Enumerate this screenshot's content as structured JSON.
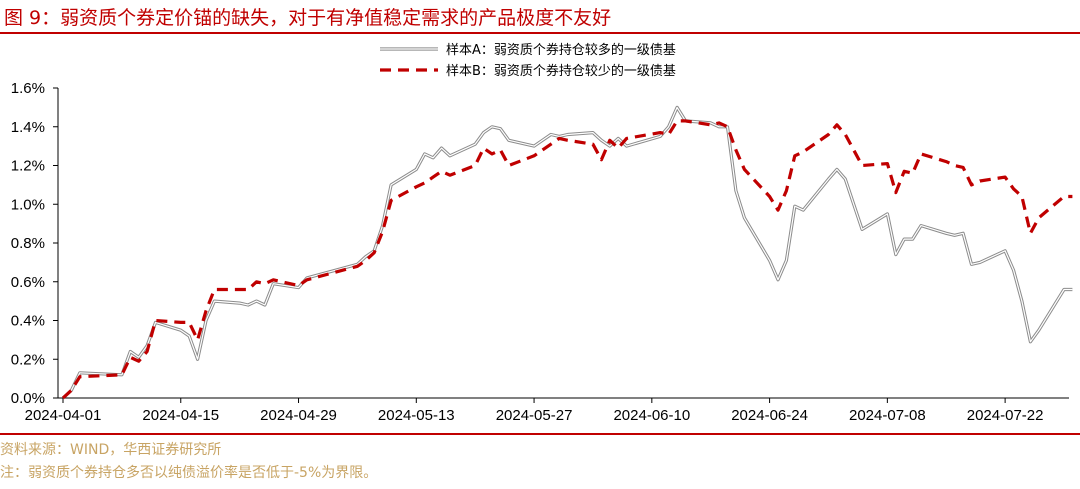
{
  "header": {
    "title": "图 9：弱资质个券定价锚的缺失，对于有净值稳定需求的产品极度不友好"
  },
  "footer": {
    "source": "资料来源：WIND，华西证券研究所",
    "note": "注：弱资质个券持仓多否以纯债溢价率是否低于-5%为界限。"
  },
  "chart_data": {
    "type": "line",
    "title": "",
    "xlabel": "",
    "ylabel": "",
    "ylim": [
      0,
      0.016
    ],
    "xlim": [
      "2024-04-01",
      "2024-07-29"
    ],
    "y_ticks": [
      "0.0%",
      "0.2%",
      "0.4%",
      "0.6%",
      "0.8%",
      "1.0%",
      "1.2%",
      "1.4%",
      "1.6%"
    ],
    "x_ticks": [
      "2024-04-01",
      "2024-04-15",
      "2024-04-29",
      "2024-05-13",
      "2024-05-27",
      "2024-06-10",
      "2024-06-24",
      "2024-07-08",
      "2024-07-22"
    ],
    "grid": false,
    "legend_position": "top-right",
    "series": [
      {
        "name": "样本A：弱资质个券持仓较多的一级债基",
        "color": "#a6a6a6",
        "style": "solid",
        "points": [
          [
            "2024-04-01",
            0.0
          ],
          [
            "2024-04-02",
            0.0004
          ],
          [
            "2024-04-03",
            0.0013
          ],
          [
            "2024-04-08",
            0.0012
          ],
          [
            "2024-04-09",
            0.0024
          ],
          [
            "2024-04-10",
            0.0021
          ],
          [
            "2024-04-11",
            0.0027
          ],
          [
            "2024-04-12",
            0.0039
          ],
          [
            "2024-04-15",
            0.0035
          ],
          [
            "2024-04-16",
            0.0032
          ],
          [
            "2024-04-17",
            0.002
          ],
          [
            "2024-04-18",
            0.004
          ],
          [
            "2024-04-19",
            0.005
          ],
          [
            "2024-04-22",
            0.0049
          ],
          [
            "2024-04-23",
            0.0048
          ],
          [
            "2024-04-24",
            0.005
          ],
          [
            "2024-04-25",
            0.0048
          ],
          [
            "2024-04-26",
            0.0059
          ],
          [
            "2024-04-29",
            0.0057
          ],
          [
            "2024-04-30",
            0.0062
          ],
          [
            "2024-05-06",
            0.0069
          ],
          [
            "2024-05-07",
            0.0073
          ],
          [
            "2024-05-08",
            0.0076
          ],
          [
            "2024-05-09",
            0.0089
          ],
          [
            "2024-05-10",
            0.011
          ],
          [
            "2024-05-13",
            0.0118
          ],
          [
            "2024-05-14",
            0.0126
          ],
          [
            "2024-05-15",
            0.0124
          ],
          [
            "2024-05-16",
            0.0129
          ],
          [
            "2024-05-17",
            0.0125
          ],
          [
            "2024-05-20",
            0.0131
          ],
          [
            "2024-05-21",
            0.0137
          ],
          [
            "2024-05-22",
            0.014
          ],
          [
            "2024-05-23",
            0.0139
          ],
          [
            "2024-05-24",
            0.0133
          ],
          [
            "2024-05-27",
            0.013
          ],
          [
            "2024-05-28",
            0.0133
          ],
          [
            "2024-05-29",
            0.0136
          ],
          [
            "2024-05-30",
            0.0135
          ],
          [
            "2024-05-31",
            0.0136
          ],
          [
            "2024-06-03",
            0.0137
          ],
          [
            "2024-06-04",
            0.0133
          ],
          [
            "2024-06-05",
            0.013
          ],
          [
            "2024-06-06",
            0.0134
          ],
          [
            "2024-06-07",
            0.013
          ],
          [
            "2024-06-11",
            0.0135
          ],
          [
            "2024-06-12",
            0.014
          ],
          [
            "2024-06-13",
            0.015
          ],
          [
            "2024-06-14",
            0.0143
          ],
          [
            "2024-06-17",
            0.0142
          ],
          [
            "2024-06-18",
            0.014
          ],
          [
            "2024-06-19",
            0.014
          ],
          [
            "2024-06-20",
            0.0107
          ],
          [
            "2024-06-21",
            0.0093
          ],
          [
            "2024-06-24",
            0.0071
          ],
          [
            "2024-06-25",
            0.0061
          ],
          [
            "2024-06-26",
            0.0071
          ],
          [
            "2024-06-27",
            0.0099
          ],
          [
            "2024-06-28",
            0.0097
          ],
          [
            "2024-07-01",
            0.0113
          ],
          [
            "2024-07-02",
            0.0118
          ],
          [
            "2024-07-03",
            0.0113
          ],
          [
            "2024-07-04",
            0.01
          ],
          [
            "2024-07-05",
            0.0087
          ],
          [
            "2024-07-08",
            0.0095
          ],
          [
            "2024-07-09",
            0.0074
          ],
          [
            "2024-07-10",
            0.0082
          ],
          [
            "2024-07-11",
            0.0082
          ],
          [
            "2024-07-12",
            0.0089
          ],
          [
            "2024-07-15",
            0.0085
          ],
          [
            "2024-07-16",
            0.0084
          ],
          [
            "2024-07-17",
            0.0085
          ],
          [
            "2024-07-18",
            0.0069
          ],
          [
            "2024-07-19",
            0.007
          ],
          [
            "2024-07-22",
            0.0076
          ],
          [
            "2024-07-23",
            0.0066
          ],
          [
            "2024-07-24",
            0.005
          ],
          [
            "2024-07-25",
            0.0029
          ],
          [
            "2024-07-26",
            0.0035
          ],
          [
            "2024-07-29",
            0.0056
          ],
          [
            "2024-07-30",
            0.0056
          ]
        ]
      },
      {
        "name": "样本B：弱资质个券持仓较少的一级债基",
        "color": "#c00000",
        "style": "dashed",
        "points": [
          [
            "2024-04-01",
            0.0
          ],
          [
            "2024-04-02",
            0.0004
          ],
          [
            "2024-04-03",
            0.0011
          ],
          [
            "2024-04-08",
            0.0012
          ],
          [
            "2024-04-09",
            0.0021
          ],
          [
            "2024-04-10",
            0.0019
          ],
          [
            "2024-04-11",
            0.0024
          ],
          [
            "2024-04-12",
            0.004
          ],
          [
            "2024-04-15",
            0.0039
          ],
          [
            "2024-04-16",
            0.0039
          ],
          [
            "2024-04-17",
            0.003
          ],
          [
            "2024-04-18",
            0.0045
          ],
          [
            "2024-04-19",
            0.0056
          ],
          [
            "2024-04-22",
            0.0056
          ],
          [
            "2024-04-23",
            0.0056
          ],
          [
            "2024-04-24",
            0.006
          ],
          [
            "2024-04-25",
            0.0059
          ],
          [
            "2024-04-26",
            0.0061
          ],
          [
            "2024-04-29",
            0.0058
          ],
          [
            "2024-04-30",
            0.0061
          ],
          [
            "2024-05-06",
            0.0068
          ],
          [
            "2024-05-07",
            0.0071
          ],
          [
            "2024-05-08",
            0.0075
          ],
          [
            "2024-05-09",
            0.0086
          ],
          [
            "2024-05-10",
            0.0102
          ],
          [
            "2024-05-13",
            0.0109
          ],
          [
            "2024-05-14",
            0.0111
          ],
          [
            "2024-05-15",
            0.0114
          ],
          [
            "2024-05-16",
            0.0117
          ],
          [
            "2024-05-17",
            0.0115
          ],
          [
            "2024-05-20",
            0.012
          ],
          [
            "2024-05-21",
            0.0129
          ],
          [
            "2024-05-22",
            0.0126
          ],
          [
            "2024-05-23",
            0.0128
          ],
          [
            "2024-05-24",
            0.012
          ],
          [
            "2024-05-27",
            0.0125
          ],
          [
            "2024-05-28",
            0.0128
          ],
          [
            "2024-05-29",
            0.0131
          ],
          [
            "2024-05-30",
            0.0134
          ],
          [
            "2024-05-31",
            0.0133
          ],
          [
            "2024-06-03",
            0.0131
          ],
          [
            "2024-06-04",
            0.0123
          ],
          [
            "2024-06-05",
            0.0133
          ],
          [
            "2024-06-06",
            0.0129
          ],
          [
            "2024-06-07",
            0.0134
          ],
          [
            "2024-06-11",
            0.0137
          ],
          [
            "2024-06-12",
            0.0136
          ],
          [
            "2024-06-13",
            0.0143
          ],
          [
            "2024-06-14",
            0.0143
          ],
          [
            "2024-06-17",
            0.0141
          ],
          [
            "2024-06-18",
            0.0142
          ],
          [
            "2024-06-19",
            0.014
          ],
          [
            "2024-06-20",
            0.0128
          ],
          [
            "2024-06-21",
            0.0118
          ],
          [
            "2024-06-24",
            0.0104
          ],
          [
            "2024-06-25",
            0.0097
          ],
          [
            "2024-06-26",
            0.0107
          ],
          [
            "2024-06-27",
            0.0125
          ],
          [
            "2024-06-28",
            0.0127
          ],
          [
            "2024-07-01",
            0.0136
          ],
          [
            "2024-07-02",
            0.0141
          ],
          [
            "2024-07-03",
            0.0136
          ],
          [
            "2024-07-04",
            0.0128
          ],
          [
            "2024-07-05",
            0.012
          ],
          [
            "2024-07-08",
            0.0121
          ],
          [
            "2024-07-09",
            0.0106
          ],
          [
            "2024-07-10",
            0.0117
          ],
          [
            "2024-07-11",
            0.0116
          ],
          [
            "2024-07-12",
            0.0126
          ],
          [
            "2024-07-15",
            0.0122
          ],
          [
            "2024-07-16",
            0.012
          ],
          [
            "2024-07-17",
            0.0119
          ],
          [
            "2024-07-18",
            0.011
          ],
          [
            "2024-07-19",
            0.0112
          ],
          [
            "2024-07-22",
            0.0114
          ],
          [
            "2024-07-23",
            0.0108
          ],
          [
            "2024-07-24",
            0.0104
          ],
          [
            "2024-07-25",
            0.0085
          ],
          [
            "2024-07-26",
            0.0093
          ],
          [
            "2024-07-29",
            0.0104
          ],
          [
            "2024-07-30",
            0.0104
          ]
        ]
      }
    ]
  }
}
